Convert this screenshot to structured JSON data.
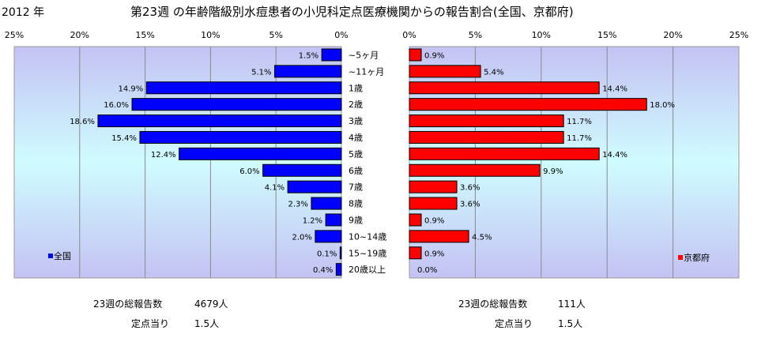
{
  "header": {
    "year": "2012 年",
    "title": "第23週 の年齢階級別水痘患者の小児科定点医療機関からの報告割合(全国、京都府)"
  },
  "chart_data": {
    "type": "bar",
    "orientation": "horizontal",
    "categories": [
      "~5ヶ月",
      "~11ヶ月",
      "1歳",
      "2歳",
      "3歳",
      "4歳",
      "5歳",
      "6歳",
      "7歳",
      "8歳",
      "9歳",
      "10~14歳",
      "15~19歳",
      "20歳以上"
    ],
    "x_ticks": [
      "25%",
      "20%",
      "15%",
      "10%",
      "5%",
      "0%"
    ],
    "x_ticks_right": [
      "0%",
      "5%",
      "10%",
      "15%",
      "20%",
      "25%"
    ],
    "xlim": [
      0,
      25
    ],
    "series": [
      {
        "name": "全国",
        "color": "#0000ff",
        "values": [
          1.5,
          5.1,
          14.9,
          16.0,
          18.6,
          15.4,
          12.4,
          6.0,
          4.1,
          2.3,
          1.2,
          2.0,
          0.1,
          0.4
        ],
        "labels": [
          "1.5%",
          "5.1%",
          "14.9%",
          "16.0%",
          "18.6%",
          "15.4%",
          "12.4%",
          "6.0%",
          "4.1%",
          "2.3%",
          "1.2%",
          "2.0%",
          "0.1%",
          "0.4%"
        ]
      },
      {
        "name": "京都府",
        "color": "#ff0000",
        "values": [
          0.9,
          5.4,
          14.4,
          18.0,
          11.7,
          11.7,
          14.4,
          9.9,
          3.6,
          3.6,
          0.9,
          4.5,
          0.9,
          0.0
        ],
        "labels": [
          "0.9%",
          "5.4%",
          "14.4%",
          "18.0%",
          "11.7%",
          "11.7%",
          "14.4%",
          "9.9%",
          "3.6%",
          "3.6%",
          "0.9%",
          "4.5%",
          "0.9%",
          "0.0%"
        ]
      }
    ]
  },
  "footer": {
    "left": {
      "total_label": "23週の総報告数",
      "total_value": "4679人",
      "per_label": "定点当り",
      "per_value": "1.5人"
    },
    "right": {
      "total_label": "23週の総報告数",
      "total_value": "111人",
      "per_label": "定点当り",
      "per_value": "1.5人"
    }
  }
}
